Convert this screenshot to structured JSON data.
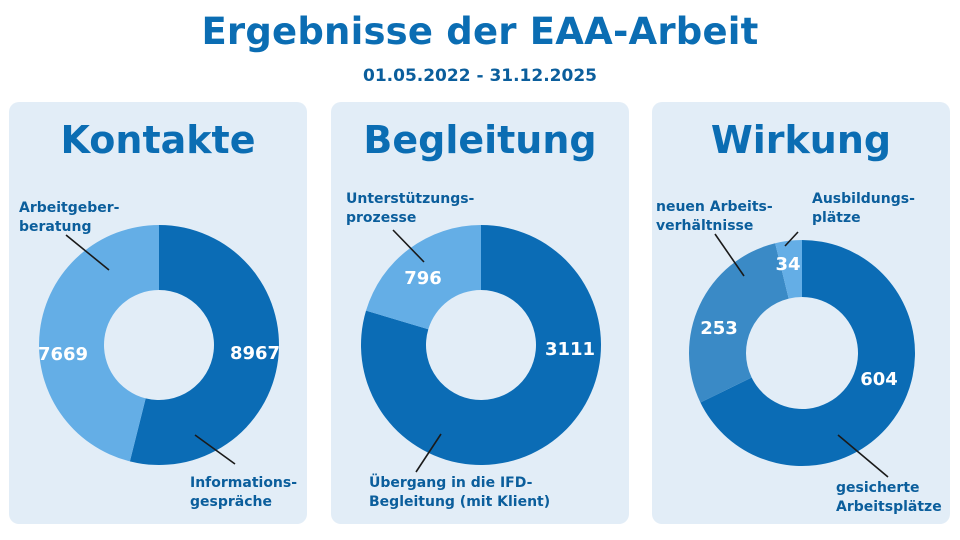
{
  "header": {
    "title": "Ergebnisse der EAA-Arbeit",
    "subtitle": "01.05.2022 - 31.12.2025"
  },
  "colors": {
    "dark": "#0b6cb5",
    "light": "#64aee6",
    "medium": "#3a8ac6",
    "panel": "#e2edf7",
    "text": "#0b5e9c"
  },
  "chart_data": [
    {
      "type": "pie",
      "title": "Kontakte",
      "series": [
        {
          "name": "Informations-gespräche",
          "value": 8967,
          "label_lines": [
            "Informations-",
            "gespräche"
          ]
        },
        {
          "name": "Arbeitgeber-beratung",
          "value": 7669,
          "label_lines": [
            "Arbeitgeber-",
            "beratung"
          ]
        }
      ]
    },
    {
      "type": "pie",
      "title": "Begleitung",
      "series": [
        {
          "name": "Übergang in die IFD-Begleitung (mit Klient)",
          "value": 3111,
          "label_lines": [
            "Übergang in die IFD-",
            "Begleitung (mit Klient)"
          ]
        },
        {
          "name": "Unterstützungs-prozesse",
          "value": 796,
          "label_lines": [
            "Unterstützungs-",
            "prozesse"
          ]
        }
      ]
    },
    {
      "type": "pie",
      "title": "Wirkung",
      "series": [
        {
          "name": "gesicherte Arbeitsplätze",
          "value": 604,
          "label_lines": [
            "gesicherte",
            "Arbeitsplätze"
          ]
        },
        {
          "name": "neuen Arbeits-verhältnisse",
          "value": 253,
          "label_lines": [
            "neuen Arbeits-",
            "verhältnisse"
          ]
        },
        {
          "name": "Ausbildungs-plätze",
          "value": 34,
          "label_lines": [
            "Ausbildungs-",
            "plätze"
          ]
        }
      ]
    }
  ]
}
